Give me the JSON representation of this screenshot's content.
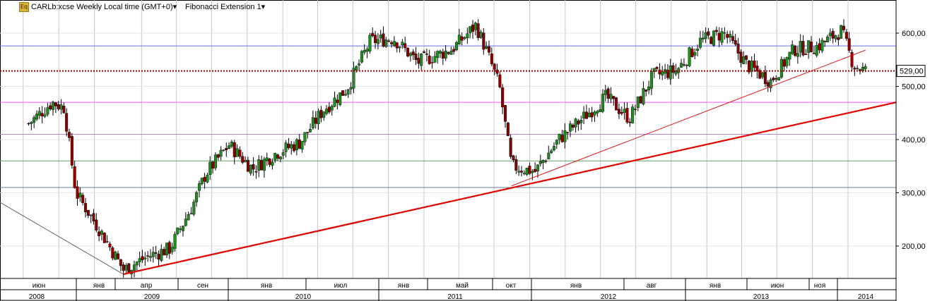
{
  "toolbar": {
    "icon_label": "Eq",
    "symbol_label": "CARLb:xcse Weekly Local time (GMT+0)",
    "indicator_label": "Fibonacci Extension 1",
    "dropdown_glyph": "▾"
  },
  "colors": {
    "background": "#ffffff",
    "up_candle": "#228b22",
    "down_candle": "#8b0000",
    "trendline": "#e00000",
    "price_marker": "#a00000",
    "fib_blue": "#6e6eff",
    "fib_magenta": "#ff50ff",
    "fib_purple": "#c080e0",
    "fib_green": "#60a060",
    "fib_gray": "#6080a0",
    "grid": "#c8c8c8"
  },
  "chart_data": {
    "type": "candlestick",
    "title": "CARLb:xcse Weekly Local time (GMT+0)",
    "ylim": [
      130,
      650
    ],
    "yticks": [
      "200,00",
      "300,00",
      "400,00",
      "500,00",
      "600,00"
    ],
    "ytick_values": [
      200,
      300,
      400,
      500,
      600
    ],
    "last_price_label": "529,00",
    "last_price": 529,
    "fib_levels": [
      {
        "value": 576,
        "color": "#6e6eff"
      },
      {
        "value": 470,
        "color": "#ff50ff"
      },
      {
        "value": 410,
        "color": "#c080e0"
      },
      {
        "value": 360,
        "color": "#60a060"
      },
      {
        "value": 310,
        "color": "#6080a0"
      }
    ],
    "month_labels": [
      "июн",
      "янв",
      "апр",
      "сен",
      "янв",
      "июл",
      "янв",
      "май",
      "окт",
      "янв",
      "авг",
      "янв",
      "июн",
      "ноя"
    ],
    "year_labels": [
      "2008",
      "2009",
      "2010",
      "2011",
      "2012",
      "2013",
      "2014"
    ],
    "trendlines": [
      {
        "from": [
          "2008-11",
          147
        ],
        "to": [
          "2014-02",
          470
        ],
        "style": "thick"
      },
      {
        "from": [
          "2011-08",
          313
        ],
        "to": [
          "2014-02",
          568
        ],
        "style": "thin"
      }
    ],
    "weekly_close_path": [
      {
        "date": "2008-03",
        "price": 430
      },
      {
        "date": "2008-05",
        "price": 470
      },
      {
        "date": "2008-06",
        "price": 460
      },
      {
        "date": "2008-07",
        "price": 300
      },
      {
        "date": "2008-09",
        "price": 230
      },
      {
        "date": "2008-11",
        "price": 155
      },
      {
        "date": "2009-01",
        "price": 180
      },
      {
        "date": "2009-03",
        "price": 195
      },
      {
        "date": "2009-05",
        "price": 280
      },
      {
        "date": "2009-06",
        "price": 335
      },
      {
        "date": "2009-08",
        "price": 390
      },
      {
        "date": "2009-10",
        "price": 345
      },
      {
        "date": "2009-12",
        "price": 375
      },
      {
        "date": "2010-02",
        "price": 395
      },
      {
        "date": "2010-04",
        "price": 455
      },
      {
        "date": "2010-06",
        "price": 495
      },
      {
        "date": "2010-08",
        "price": 585
      },
      {
        "date": "2010-10",
        "price": 590
      },
      {
        "date": "2010-12",
        "price": 545
      },
      {
        "date": "2011-03",
        "price": 570
      },
      {
        "date": "2011-05",
        "price": 615
      },
      {
        "date": "2011-06",
        "price": 560
      },
      {
        "date": "2011-07",
        "price": 500
      },
      {
        "date": "2011-08",
        "price": 350
      },
      {
        "date": "2011-10",
        "price": 340
      },
      {
        "date": "2011-12",
        "price": 400
      },
      {
        "date": "2012-02",
        "price": 440
      },
      {
        "date": "2012-04",
        "price": 480
      },
      {
        "date": "2012-06",
        "price": 440
      },
      {
        "date": "2012-08",
        "price": 520
      },
      {
        "date": "2012-10",
        "price": 530
      },
      {
        "date": "2012-12",
        "price": 585
      },
      {
        "date": "2013-02",
        "price": 600
      },
      {
        "date": "2013-04",
        "price": 540
      },
      {
        "date": "2013-06",
        "price": 510
      },
      {
        "date": "2013-08",
        "price": 570
      },
      {
        "date": "2013-10",
        "price": 575
      },
      {
        "date": "2013-12",
        "price": 605
      },
      {
        "date": "2014-01",
        "price": 540
      },
      {
        "date": "2014-02",
        "price": 529
      }
    ],
    "grid": true
  }
}
